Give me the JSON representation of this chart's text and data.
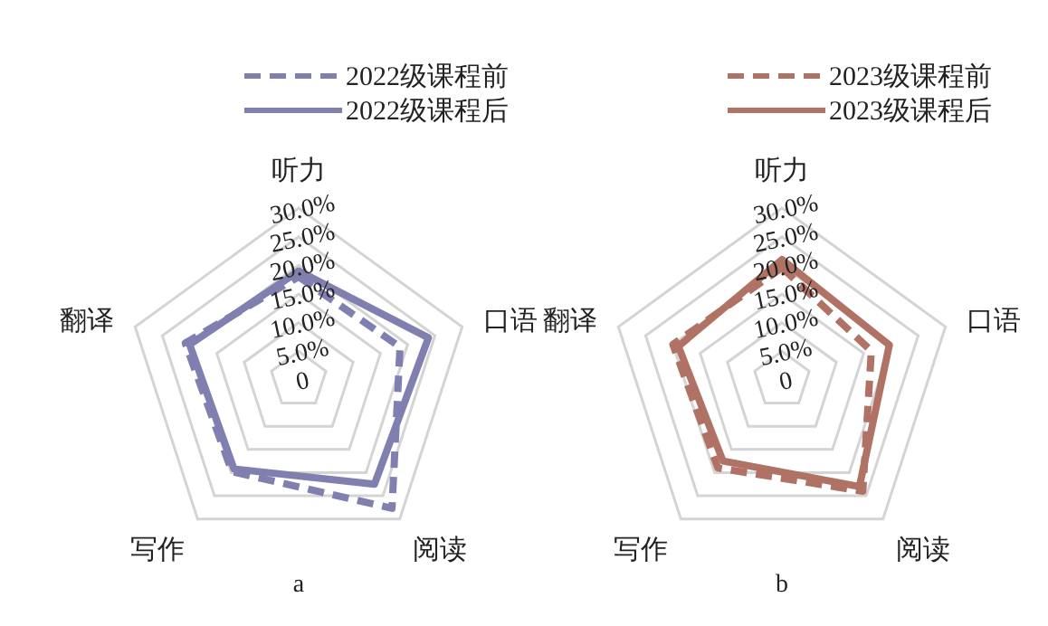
{
  "chart_data": [
    {
      "type": "radar",
      "categories": [
        "听力",
        "口语",
        "阅读",
        "写作",
        "翻译"
      ],
      "series": [
        {
          "name": "2022级课程前",
          "color": "#8080b0",
          "line_style": "dashed",
          "values": [
            18,
            18.6,
            27.7,
            19.8,
            20.8
          ]
        },
        {
          "name": "2022级课程后",
          "color": "#8080b0",
          "line_style": "solid",
          "values": [
            19,
            23.8,
            22.5,
            19.2,
            20
          ]
        }
      ],
      "ylim": [
        0,
        30
      ],
      "yticks": [
        0,
        {
          "value": 5,
          "label": "5.0%"
        },
        {
          "value": 10,
          "label": "10.0%"
        },
        {
          "value": 15,
          "label": "15.0%"
        },
        {
          "value": 20,
          "label": "20.0%"
        },
        {
          "value": 25,
          "label": "25.0%"
        },
        {
          "value": 30,
          "label": "30.0%"
        }
      ],
      "grid": true,
      "legend": "top",
      "annotations": [
        "a"
      ]
    },
    {
      "type": "radar",
      "categories": [
        "听力",
        "口语",
        "阅读",
        "写作",
        "翻译"
      ],
      "series": [
        {
          "name": "2023级课程前",
          "color": "#b07264",
          "line_style": "dashed",
          "values": [
            19.6,
            16.4,
            24,
            19,
            20
          ]
        },
        {
          "name": "2023级课程后",
          "color": "#b07264",
          "line_style": "solid",
          "values": [
            21,
            19.7,
            23,
            17.5,
            19
          ]
        }
      ],
      "ylim": [
        0,
        30
      ],
      "yticks": [
        0,
        {
          "value": 5,
          "label": "5.0%"
        },
        {
          "value": 10,
          "label": "10.0%"
        },
        {
          "value": 15,
          "label": "15.0%"
        },
        {
          "value": 20,
          "label": "20.0%"
        },
        {
          "value": 25,
          "label": "25.0%"
        },
        {
          "value": 30,
          "label": "30.0%"
        }
      ],
      "grid": true,
      "legend": "top",
      "annotations": [
        "b"
      ]
    }
  ]
}
